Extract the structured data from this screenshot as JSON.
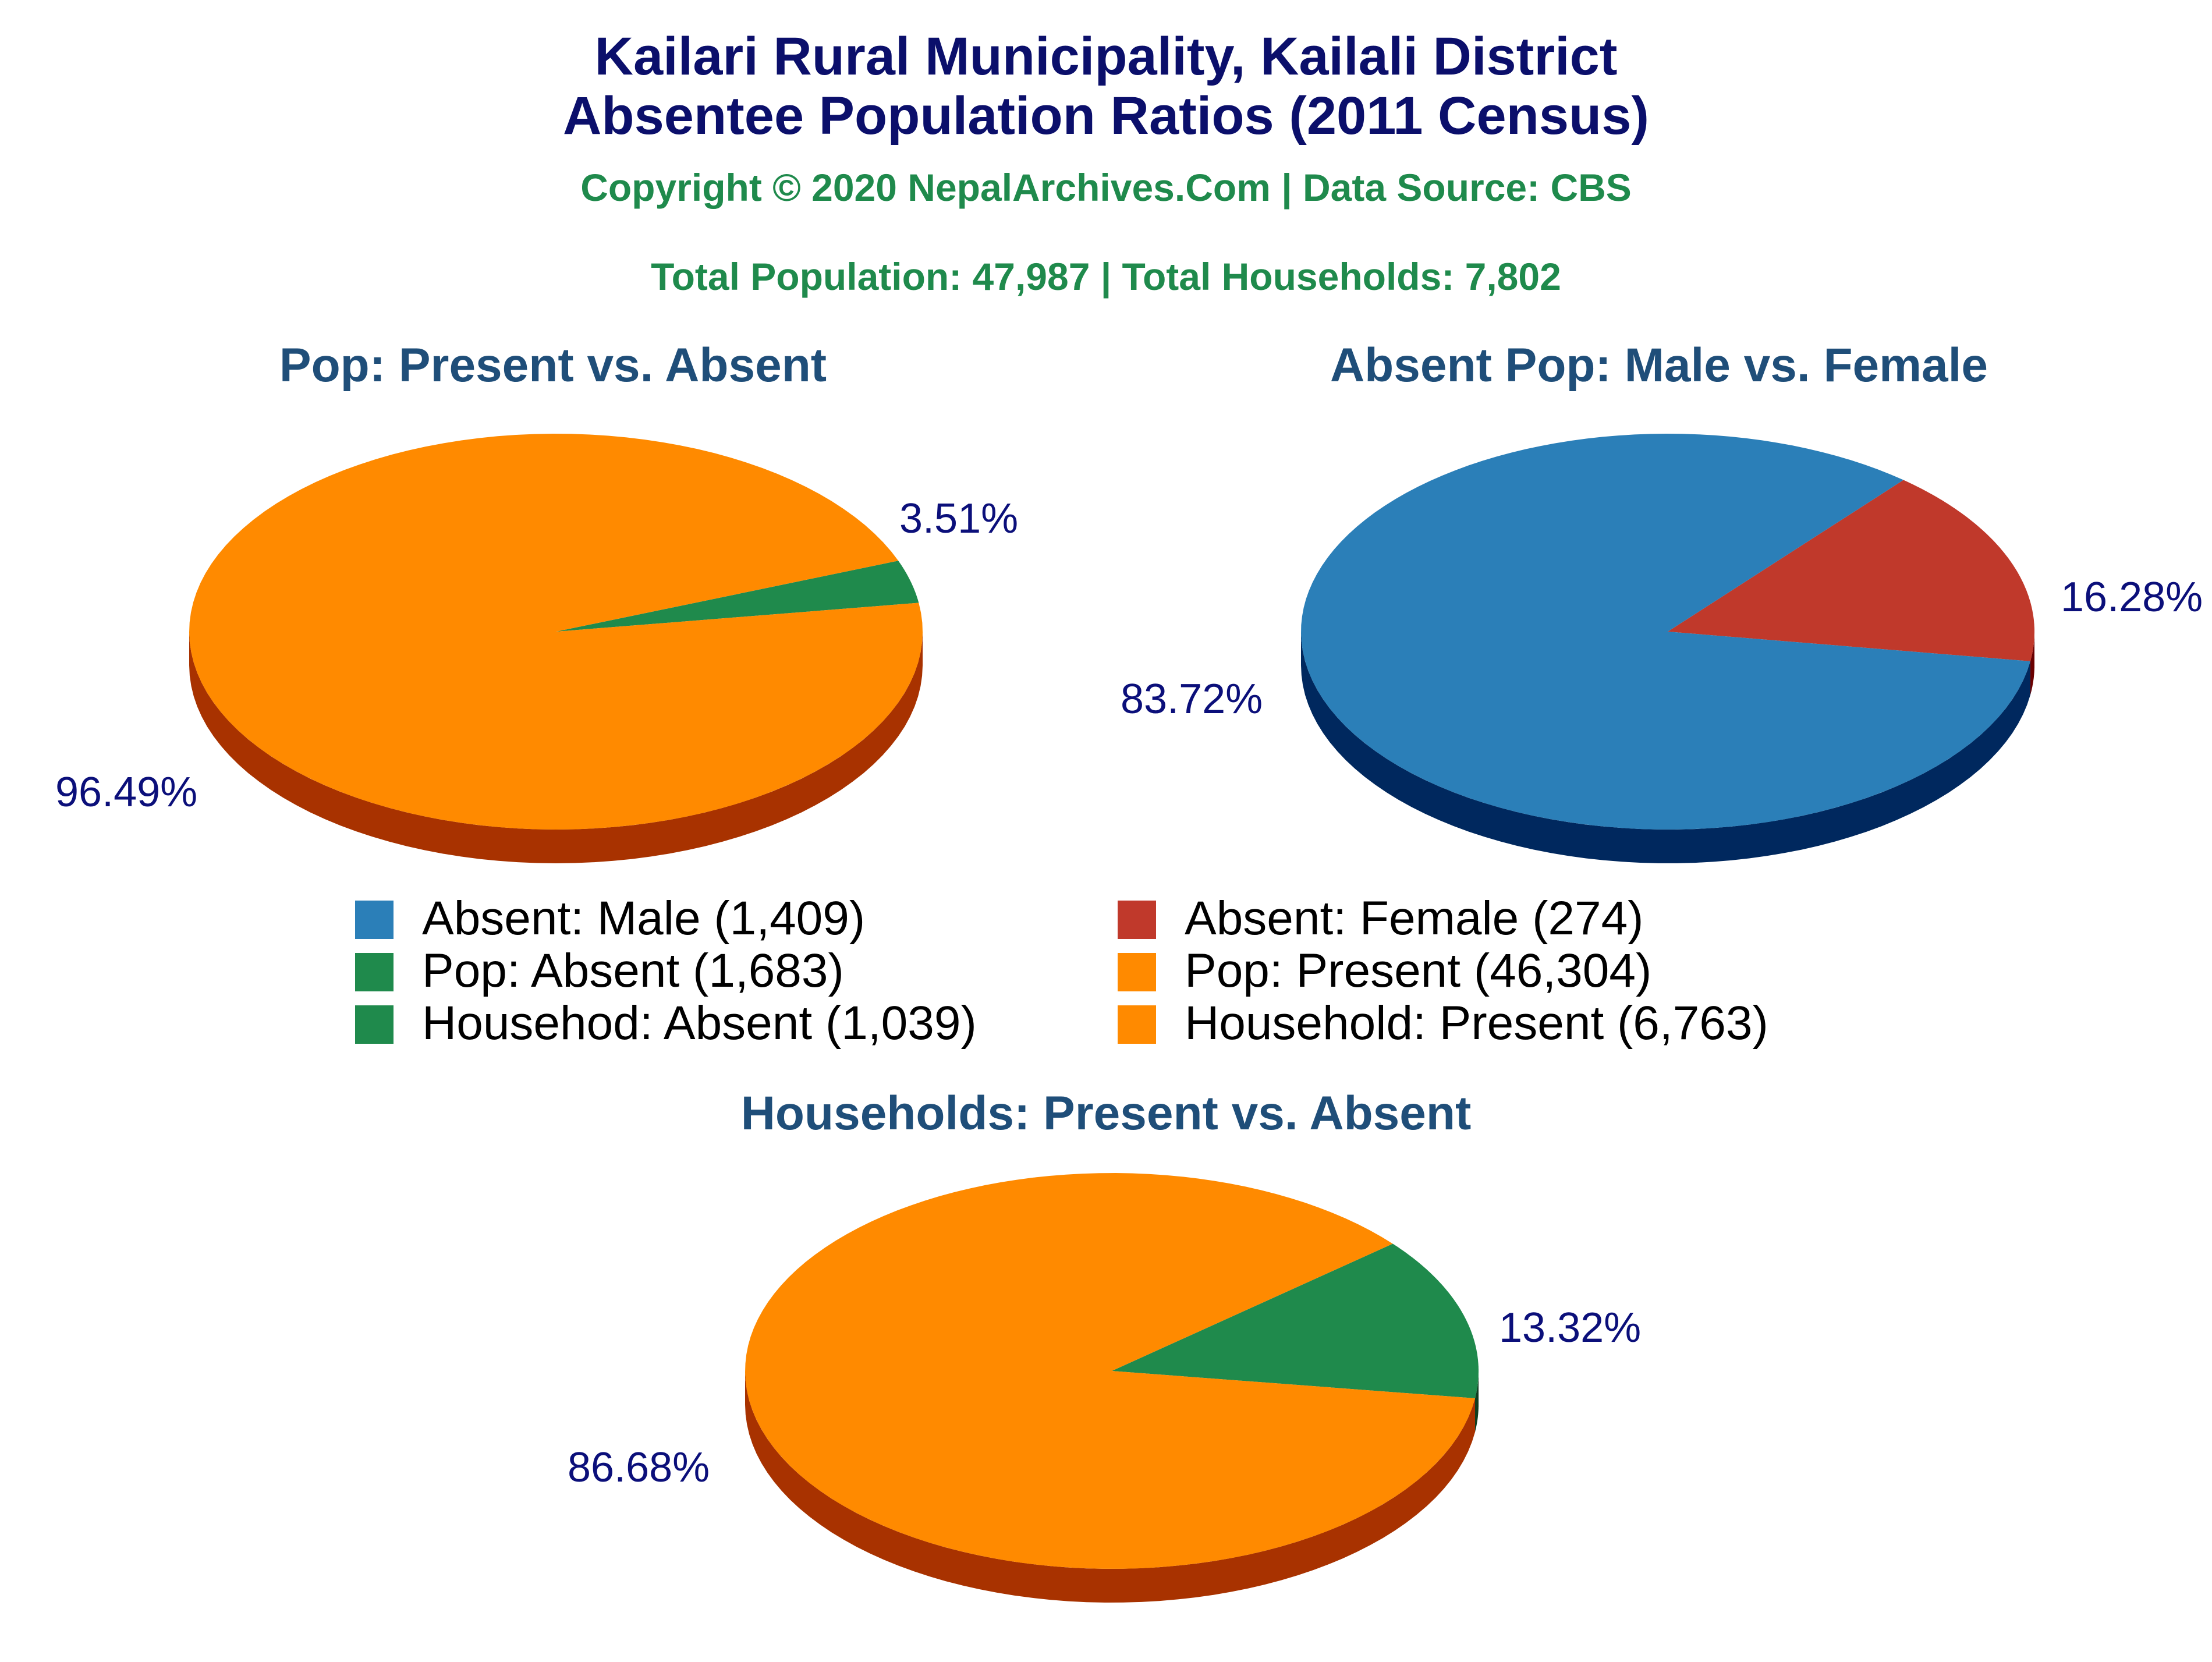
{
  "title": {
    "line1": "Kailari Rural Municipality, Kailali District",
    "line2": "Absentee Population Ratios (2011 Census)"
  },
  "copyright": "Copyright © 2020 NepalArchives.Com | Data Source: CBS",
  "totals": "Total Population: 47,987 | Total Households: 7,802",
  "colors": {
    "title": "#0b0f6b",
    "subtitle": "#1f8a4c",
    "chart_title": "#1f4e79",
    "pct_label": "#0b0f7a",
    "orange": "#ff8a00",
    "orange_side": "#a83200",
    "green": "#1f8a4c",
    "green_side": "#0f3d1f",
    "blue": "#2b7fb8",
    "blue_side": "#00285e",
    "red": "#c0392b",
    "red_side": "#6b0000"
  },
  "legend": [
    {
      "label": "Absent: Male (1,409)",
      "color": "#2b7fb8"
    },
    {
      "label": "Absent: Female (274)",
      "color": "#c0392b"
    },
    {
      "label": "Pop: Absent (1,683)",
      "color": "#1f8a4c"
    },
    {
      "label": "Pop: Present (46,304)",
      "color": "#ff8a00"
    },
    {
      "label": "Househod: Absent (1,039)",
      "color": "#1f8a4c"
    },
    {
      "label": "Household: Present (6,763)",
      "color": "#ff8a00"
    }
  ],
  "chart_data": [
    {
      "type": "pie",
      "title": "Pop: Present vs. Absent",
      "slices": [
        {
          "name": "Pop: Absent",
          "value": 1683,
          "percent_label": "3.51%",
          "color": "#1f8a4c",
          "side_color": "#0f3d1f"
        },
        {
          "name": "Pop: Present",
          "value": 46304,
          "percent_label": "96.49%",
          "color": "#ff8a00",
          "side_color": "#a83200"
        }
      ]
    },
    {
      "type": "pie",
      "title": "Absent Pop: Male vs. Female",
      "slices": [
        {
          "name": "Absent: Female",
          "value": 274,
          "percent_label": "16.28%",
          "color": "#c0392b",
          "side_color": "#6b0000"
        },
        {
          "name": "Absent: Male",
          "value": 1409,
          "percent_label": "83.72%",
          "color": "#2b7fb8",
          "side_color": "#00285e"
        }
      ]
    },
    {
      "type": "pie",
      "title": "Households: Present vs. Absent",
      "slices": [
        {
          "name": "Househod: Absent",
          "value": 1039,
          "percent_label": "13.32%",
          "color": "#1f8a4c",
          "side_color": "#0f3d1f"
        },
        {
          "name": "Household: Present",
          "value": 6763,
          "percent_label": "86.68%",
          "color": "#ff8a00",
          "side_color": "#a83200"
        }
      ]
    }
  ]
}
